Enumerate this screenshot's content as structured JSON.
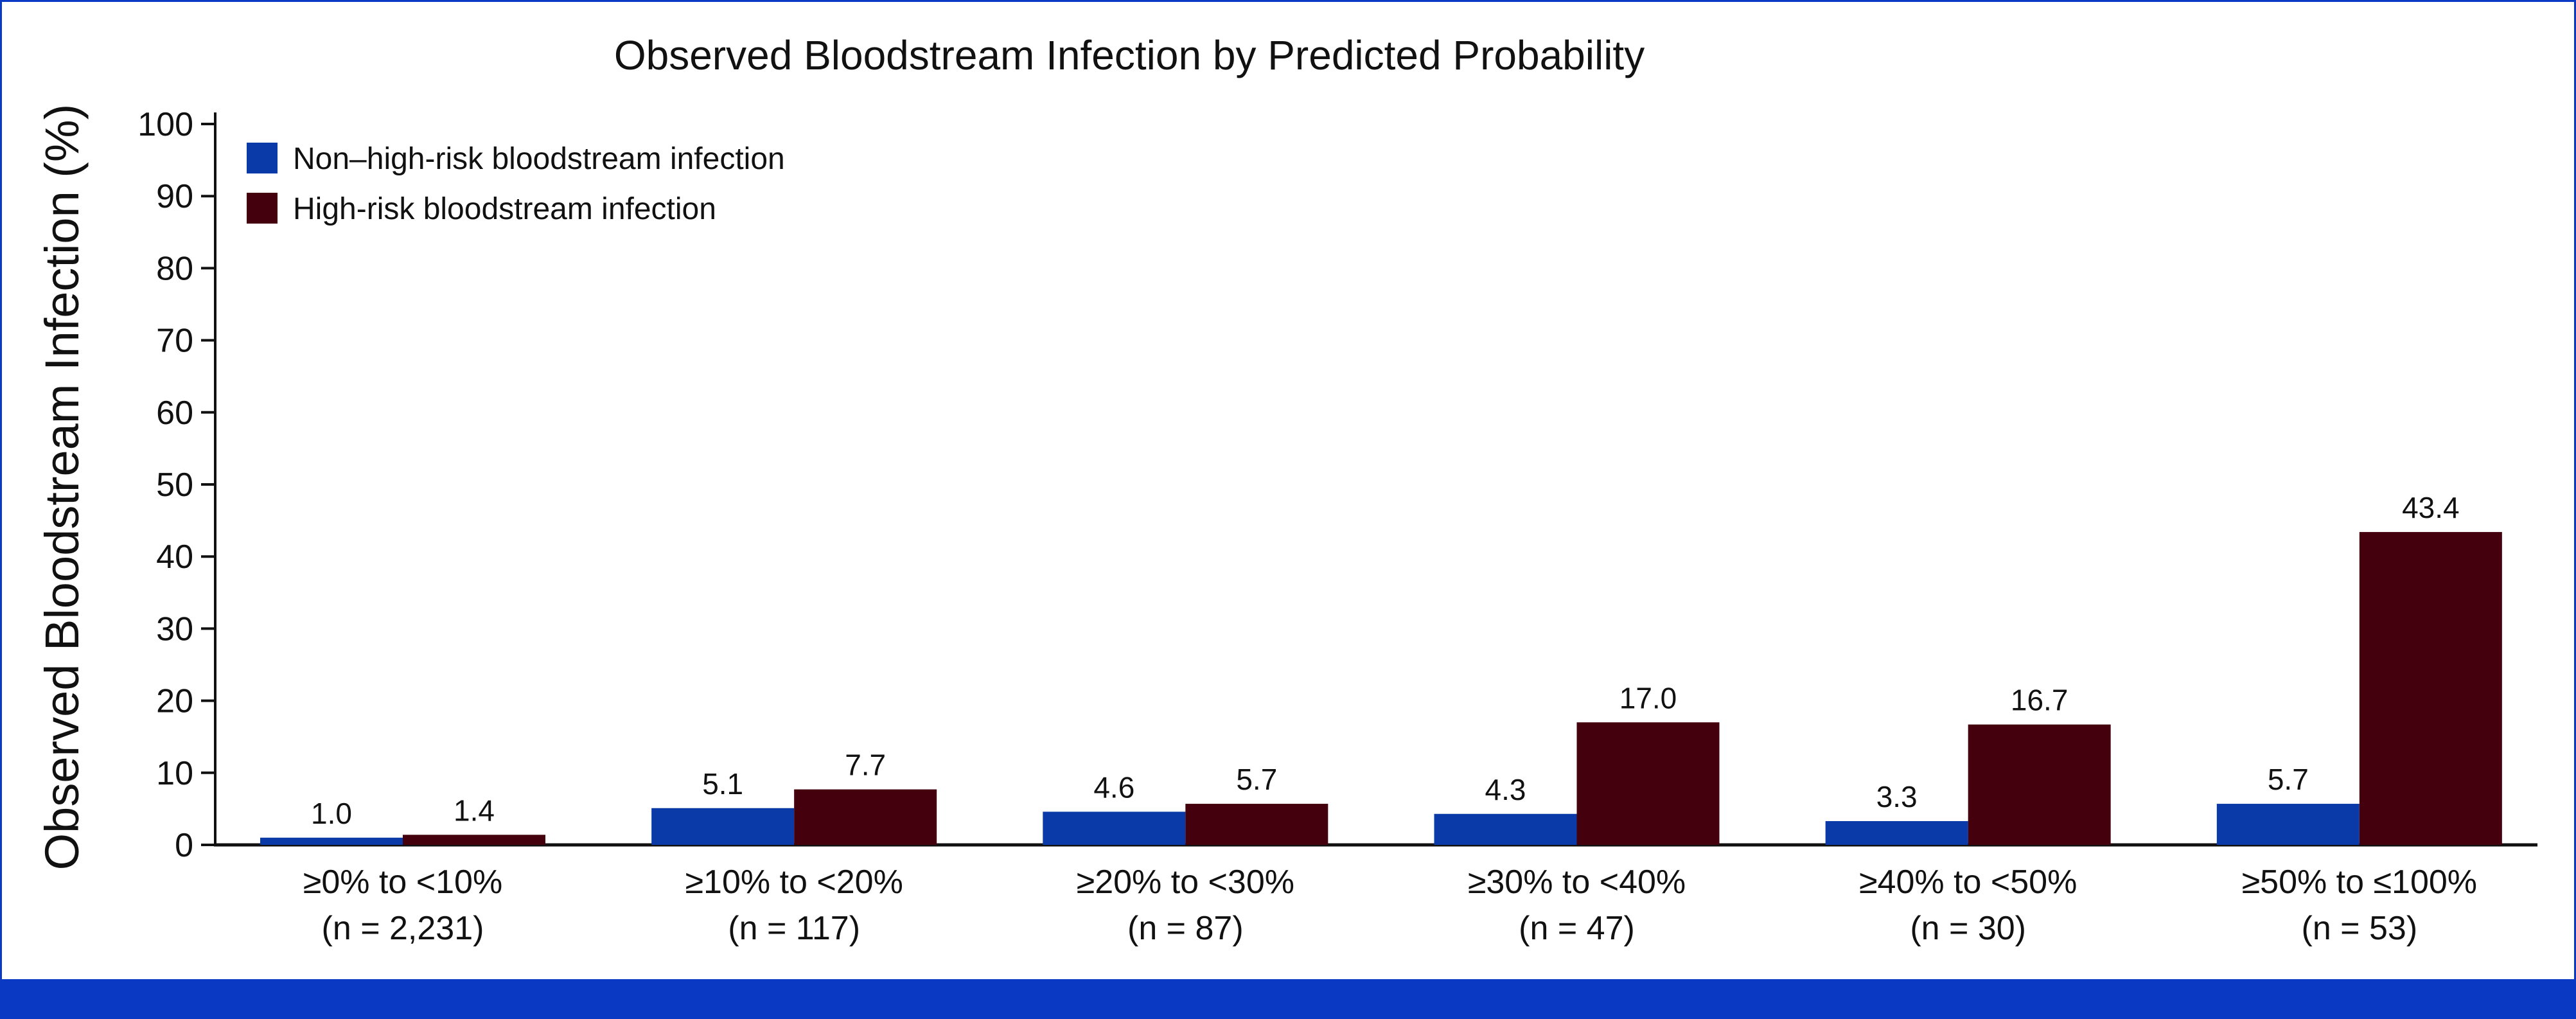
{
  "chart_data": {
    "type": "bar",
    "title": "Observed Bloodstream Infection by Predicted Probability",
    "xlabel": "",
    "ylabel": "Observed Bloodstream Infection (%)",
    "ylim": [
      0,
      100
    ],
    "yticks": [
      "0",
      "10",
      "20",
      "30",
      "40",
      "50",
      "60",
      "70",
      "80",
      "90",
      "100"
    ],
    "categories": [
      {
        "range": "≥0% to <10%",
        "n": "(n = 2,231)"
      },
      {
        "range": "≥10% to <20%",
        "n": "(n = 117)"
      },
      {
        "range": "≥20% to <30%",
        "n": "(n = 87)"
      },
      {
        "range": "≥30% to <40%",
        "n": "(n = 47)"
      },
      {
        "range": "≥40% to <50%",
        "n": "(n = 30)"
      },
      {
        "range": "≥50% to ≤100%",
        "n": "(n = 53)"
      }
    ],
    "series": [
      {
        "name": "Non–high-risk bloodstream infection",
        "color": "#0a3aa8",
        "values": [
          1.0,
          5.1,
          4.6,
          4.3,
          3.3,
          5.7
        ],
        "labels": [
          "1.0",
          "5.1",
          "4.6",
          "4.3",
          "3.3",
          "5.7"
        ]
      },
      {
        "name": "High-risk bloodstream infection",
        "color": "#45000d",
        "values": [
          1.4,
          7.7,
          5.7,
          17.0,
          16.7,
          43.4
        ],
        "labels": [
          "1.4",
          "7.7",
          "5.7",
          "17.0",
          "16.7",
          "43.4"
        ]
      }
    ],
    "legend_position": "top-left",
    "grid": false
  }
}
